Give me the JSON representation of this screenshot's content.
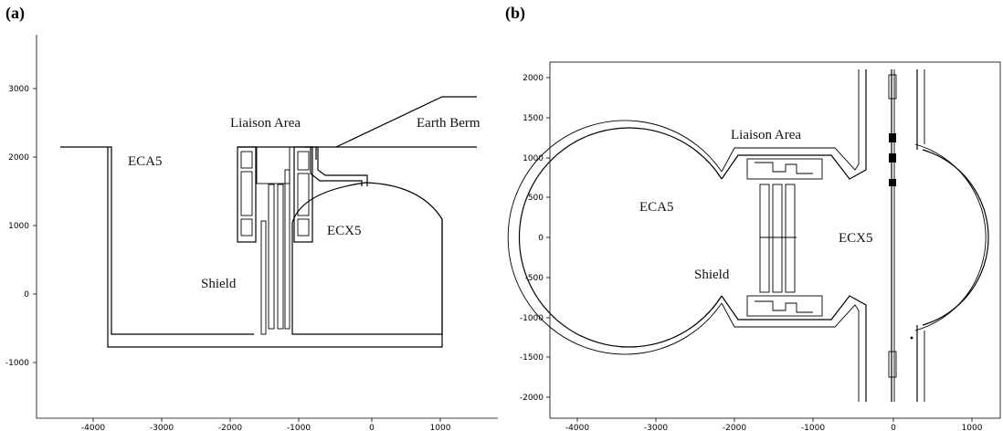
{
  "panels": [
    {
      "label": "(a)",
      "x_ticks": [
        "-4000",
        "-3000",
        "-2000",
        "-1000",
        "0",
        "1000"
      ],
      "y_ticks": [
        "3000",
        "2000",
        "1000",
        "0",
        "-1000"
      ],
      "regions": {
        "liaison": "Liaison Area",
        "earth_berm": "Earth Berm",
        "eca5": "ECA5",
        "ecx5": "ECX5",
        "shield": "Shield"
      }
    },
    {
      "label": "(b)",
      "x_ticks": [
        "-4000",
        "-3000",
        "-2000",
        "-1000",
        "0",
        "1000"
      ],
      "y_ticks": [
        "2000",
        "1500",
        "1000",
        "500",
        "0",
        "-500",
        "-1000",
        "-1500",
        "-2000"
      ],
      "regions": {
        "liaison": "Liaison Area",
        "eca5": "ECA5",
        "ecx5": "ECX5",
        "shield": "Shield"
      }
    }
  ]
}
